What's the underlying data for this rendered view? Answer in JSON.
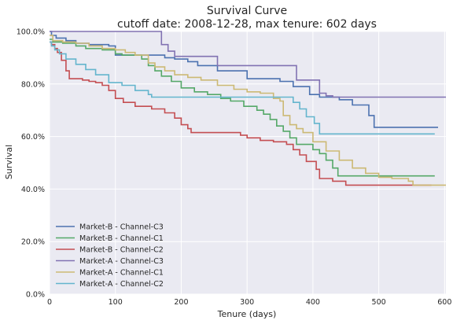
{
  "chart_data": {
    "type": "line",
    "title": "Survival Curve",
    "subtitle": "cutoff date: 2008-12-28, max tenure: 602 days",
    "xlabel": "Tenure (days)",
    "ylabel": "Survival",
    "xlim": [
      0,
      602
    ],
    "ylim": [
      0,
      1
    ],
    "x_ticks": [
      0,
      100,
      200,
      300,
      400,
      500,
      600
    ],
    "x_tick_labels": [
      "0",
      "100",
      "200",
      "300",
      "400",
      "500",
      "600"
    ],
    "y_ticks": [
      0,
      0.2,
      0.4,
      0.6,
      0.8,
      1.0
    ],
    "y_tick_labels": [
      "0.0%",
      "20.0%",
      "40.0%",
      "60.0%",
      "80.0%",
      "100.0%"
    ],
    "grid": true,
    "legend_position": "lower-left",
    "step": true,
    "series": [
      {
        "name": "Market-B - Channel-C3",
        "color": "#4c72b0",
        "points": [
          [
            0,
            1.0
          ],
          [
            3,
            0.985
          ],
          [
            10,
            0.975
          ],
          [
            25,
            0.965
          ],
          [
            40,
            0.955
          ],
          [
            60,
            0.95
          ],
          [
            90,
            0.945
          ],
          [
            100,
            0.91
          ],
          [
            160,
            0.91
          ],
          [
            175,
            0.9
          ],
          [
            190,
            0.895
          ],
          [
            210,
            0.885
          ],
          [
            225,
            0.87
          ],
          [
            255,
            0.85
          ],
          [
            300,
            0.82
          ],
          [
            350,
            0.81
          ],
          [
            370,
            0.79
          ],
          [
            395,
            0.76
          ],
          [
            410,
            0.75
          ],
          [
            440,
            0.74
          ],
          [
            460,
            0.72
          ],
          [
            485,
            0.68
          ],
          [
            493,
            0.635
          ],
          [
            590,
            0.635
          ]
        ]
      },
      {
        "name": "Market-B - Channel-C1",
        "color": "#55a868",
        "points": [
          [
            0,
            0.97
          ],
          [
            5,
            0.96
          ],
          [
            20,
            0.955
          ],
          [
            40,
            0.945
          ],
          [
            55,
            0.935
          ],
          [
            80,
            0.93
          ],
          [
            100,
            0.915
          ],
          [
            110,
            0.91
          ],
          [
            140,
            0.895
          ],
          [
            150,
            0.87
          ],
          [
            160,
            0.85
          ],
          [
            170,
            0.83
          ],
          [
            185,
            0.81
          ],
          [
            200,
            0.785
          ],
          [
            220,
            0.77
          ],
          [
            240,
            0.76
          ],
          [
            260,
            0.745
          ],
          [
            275,
            0.735
          ],
          [
            295,
            0.715
          ],
          [
            315,
            0.7
          ],
          [
            325,
            0.685
          ],
          [
            335,
            0.665
          ],
          [
            345,
            0.64
          ],
          [
            355,
            0.62
          ],
          [
            365,
            0.595
          ],
          [
            375,
            0.57
          ],
          [
            400,
            0.55
          ],
          [
            410,
            0.535
          ],
          [
            420,
            0.51
          ],
          [
            430,
            0.48
          ],
          [
            438,
            0.45
          ],
          [
            450,
            0.45
          ],
          [
            585,
            0.45
          ]
        ]
      },
      {
        "name": "Market-B - Channel-C2",
        "color": "#c44e52",
        "points": [
          [
            0,
            0.96
          ],
          [
            3,
            0.95
          ],
          [
            8,
            0.935
          ],
          [
            12,
            0.92
          ],
          [
            18,
            0.89
          ],
          [
            25,
            0.85
          ],
          [
            30,
            0.82
          ],
          [
            50,
            0.815
          ],
          [
            60,
            0.81
          ],
          [
            70,
            0.805
          ],
          [
            80,
            0.795
          ],
          [
            90,
            0.775
          ],
          [
            100,
            0.745
          ],
          [
            112,
            0.73
          ],
          [
            130,
            0.715
          ],
          [
            155,
            0.705
          ],
          [
            175,
            0.69
          ],
          [
            190,
            0.67
          ],
          [
            200,
            0.645
          ],
          [
            210,
            0.63
          ],
          [
            215,
            0.615
          ],
          [
            270,
            0.615
          ],
          [
            290,
            0.605
          ],
          [
            300,
            0.595
          ],
          [
            320,
            0.585
          ],
          [
            340,
            0.58
          ],
          [
            360,
            0.57
          ],
          [
            370,
            0.55
          ],
          [
            380,
            0.53
          ],
          [
            390,
            0.505
          ],
          [
            405,
            0.475
          ],
          [
            410,
            0.44
          ],
          [
            430,
            0.43
          ],
          [
            450,
            0.415
          ],
          [
            580,
            0.415
          ]
        ]
      },
      {
        "name": "Market-A - Channel-C3",
        "color": "#8172b2",
        "points": [
          [
            0,
            1.0
          ],
          [
            160,
            1.0
          ],
          [
            170,
            0.95
          ],
          [
            180,
            0.925
          ],
          [
            190,
            0.905
          ],
          [
            240,
            0.905
          ],
          [
            255,
            0.87
          ],
          [
            370,
            0.87
          ],
          [
            375,
            0.815
          ],
          [
            405,
            0.815
          ],
          [
            410,
            0.765
          ],
          [
            420,
            0.755
          ],
          [
            430,
            0.75
          ],
          [
            602,
            0.75
          ]
        ]
      },
      {
        "name": "Market-A - Channel-C1",
        "color": "#ccb974",
        "points": [
          [
            0,
            0.985
          ],
          [
            5,
            0.965
          ],
          [
            20,
            0.96
          ],
          [
            40,
            0.955
          ],
          [
            60,
            0.945
          ],
          [
            80,
            0.935
          ],
          [
            100,
            0.93
          ],
          [
            115,
            0.92
          ],
          [
            130,
            0.91
          ],
          [
            150,
            0.88
          ],
          [
            160,
            0.865
          ],
          [
            175,
            0.85
          ],
          [
            190,
            0.835
          ],
          [
            210,
            0.825
          ],
          [
            230,
            0.815
          ],
          [
            255,
            0.795
          ],
          [
            280,
            0.78
          ],
          [
            300,
            0.77
          ],
          [
            320,
            0.765
          ],
          [
            340,
            0.745
          ],
          [
            350,
            0.735
          ],
          [
            355,
            0.68
          ],
          [
            365,
            0.645
          ],
          [
            375,
            0.63
          ],
          [
            385,
            0.615
          ],
          [
            400,
            0.58
          ],
          [
            420,
            0.545
          ],
          [
            440,
            0.51
          ],
          [
            460,
            0.48
          ],
          [
            480,
            0.46
          ],
          [
            500,
            0.445
          ],
          [
            520,
            0.44
          ],
          [
            545,
            0.43
          ],
          [
            552,
            0.415
          ],
          [
            602,
            0.415
          ]
        ]
      },
      {
        "name": "Market-A - Channel-C2",
        "color": "#64b5cd",
        "points": [
          [
            0,
            0.96
          ],
          [
            3,
            0.945
          ],
          [
            8,
            0.93
          ],
          [
            15,
            0.915
          ],
          [
            25,
            0.895
          ],
          [
            40,
            0.875
          ],
          [
            55,
            0.855
          ],
          [
            70,
            0.835
          ],
          [
            90,
            0.805
          ],
          [
            110,
            0.795
          ],
          [
            130,
            0.775
          ],
          [
            150,
            0.76
          ],
          [
            155,
            0.75
          ],
          [
            360,
            0.75
          ],
          [
            370,
            0.73
          ],
          [
            380,
            0.705
          ],
          [
            390,
            0.675
          ],
          [
            402,
            0.65
          ],
          [
            410,
            0.61
          ],
          [
            585,
            0.61
          ]
        ]
      }
    ]
  }
}
